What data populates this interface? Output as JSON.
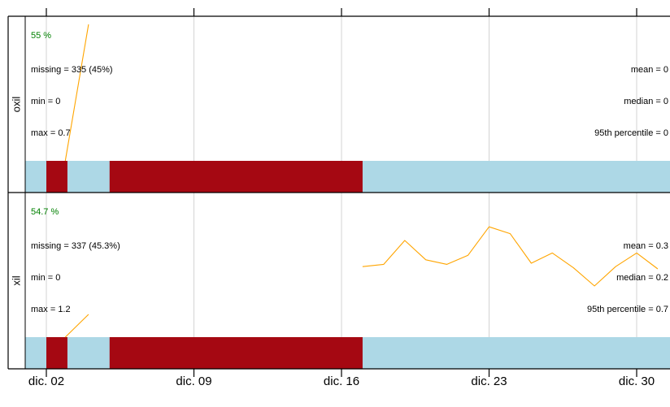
{
  "chart_data": {
    "type": "line",
    "x_axis": {
      "ticks": [
        {
          "label": "dic. 02",
          "day": 2
        },
        {
          "label": "dic. 09",
          "day": 9
        },
        {
          "label": "dic. 16",
          "day": 16
        },
        {
          "label": "dic. 23",
          "day": 23
        },
        {
          "label": "dic. 30",
          "day": 30
        }
      ],
      "xlim": [
        1.0,
        31.4
      ]
    },
    "colors": {
      "line": "#FFA500",
      "data_bar": "#ADD8E6",
      "missing_bar": "#A50812",
      "pct_text": "#008000",
      "grid": "#D3D3D3"
    },
    "panels": [
      {
        "name": "oxil",
        "pct": "55 %",
        "stats_left": [
          "missing = 335 (45%)",
          "min = 0",
          "max = 0.7"
        ],
        "stats_right": [
          "mean = 0",
          "median = 0",
          "95th percentile = 0"
        ],
        "ylim": [
          0,
          0.7
        ],
        "series": [
          {
            "x": [
              2.9,
              4.0
            ],
            "y": [
              0.0,
              0.7
            ]
          }
        ],
        "missing_ranges": [
          [
            2.0,
            3.0
          ],
          [
            5.0,
            17.0
          ]
        ]
      },
      {
        "name": "xil",
        "pct": "54.7 %",
        "stats_left": [
          "missing = 337 (45.3%)",
          "min = 0",
          "max = 1.2"
        ],
        "stats_right": [
          "mean = 0.3",
          "median = 0.2",
          "95th percentile = 0.7"
        ],
        "ylim": [
          0,
          1.2
        ],
        "series": [
          {
            "x": [
              2.9,
              4.0
            ],
            "y": [
              0.0,
              0.2
            ]
          },
          {
            "x": [
              17.0,
              18.0,
              19.0,
              20.0,
              21.0,
              22.0,
              23.0,
              24.0,
              25.0,
              26.0,
              27.0,
              28.0,
              29.0,
              30.0,
              31.0
            ],
            "y": [
              0.62,
              0.64,
              0.85,
              0.68,
              0.64,
              0.72,
              0.97,
              0.91,
              0.65,
              0.74,
              0.61,
              0.45,
              0.62,
              0.74,
              0.6
            ]
          }
        ],
        "missing_ranges": [
          [
            2.0,
            3.0
          ],
          [
            5.0,
            17.0
          ]
        ]
      }
    ]
  }
}
